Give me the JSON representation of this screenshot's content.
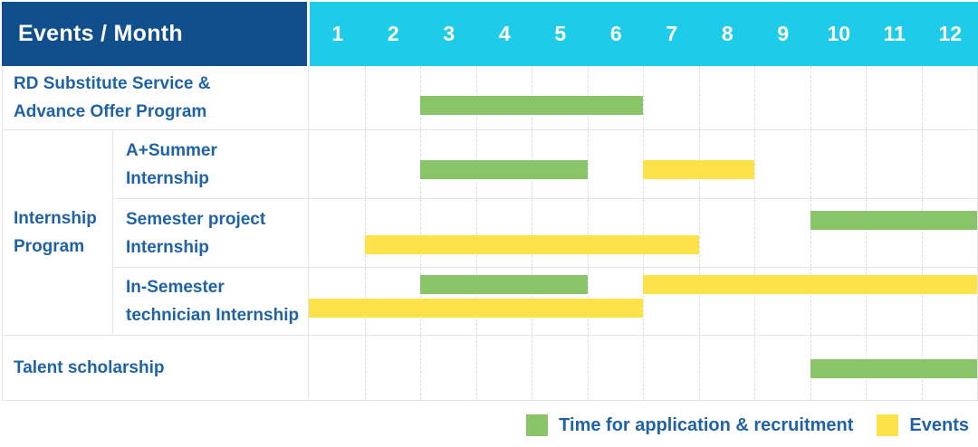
{
  "header": {
    "title": "Events / Month",
    "months": [
      "1",
      "2",
      "3",
      "4",
      "5",
      "6",
      "7",
      "8",
      "9",
      "10",
      "11",
      "12"
    ]
  },
  "colors": {
    "header_bg": "#114e8c",
    "months_bg": "#1ecbe9",
    "green": "#8ac469",
    "yellow": "#fde24a",
    "label_text": "#1f63a6"
  },
  "rows": [
    {
      "kind": "simple",
      "height": 70,
      "label_lines": [
        "RD Substitute Service &",
        "Advance Offer Program"
      ],
      "line_tops": [
        33
      ],
      "bars": [
        {
          "color": "green",
          "start": 3,
          "end": 6,
          "line": 0
        }
      ]
    },
    {
      "kind": "group",
      "label_lines": [
        "Internship",
        "Program"
      ],
      "children": [
        {
          "height": 75,
          "label_lines": [
            "A+Summer",
            "Internship"
          ],
          "line_tops": [
            33
          ],
          "bars": [
            {
              "color": "green",
              "start": 3,
              "end": 5,
              "line": 0
            },
            {
              "color": "yellow",
              "start": 7,
              "end": 8,
              "line": 0
            }
          ]
        },
        {
          "height": 75,
          "label_lines": [
            "Semester project",
            "Internship"
          ],
          "line_tops": [
            13,
            40
          ],
          "bars": [
            {
              "color": "green",
              "start": 10,
              "end": 12,
              "line": 0
            },
            {
              "color": "yellow",
              "start": 2,
              "end": 7,
              "line": 1
            }
          ]
        },
        {
          "height": 74,
          "label_lines": [
            "In-Semester",
            "technician Internship"
          ],
          "line_tops": [
            8,
            34
          ],
          "bars": [
            {
              "color": "green",
              "start": 3,
              "end": 5,
              "line": 0
            },
            {
              "color": "yellow",
              "start": 7,
              "end": 12,
              "line": 0
            },
            {
              "color": "yellow",
              "start": 1,
              "end": 6,
              "line": 1
            }
          ]
        }
      ]
    },
    {
      "kind": "simple",
      "height": 71,
      "label_lines": [
        "Talent scholarship"
      ],
      "line_tops": [
        26
      ],
      "bars": [
        {
          "color": "green",
          "start": 10,
          "end": 12,
          "line": 0
        }
      ]
    }
  ],
  "legend": [
    {
      "color": "green",
      "label": "Time for application & recruitment"
    },
    {
      "color": "yellow",
      "label": "Events"
    }
  ],
  "chart_data": {
    "type": "gantt",
    "title": "Events / Month",
    "x_axis": {
      "label": "Month",
      "ticks": [
        1,
        2,
        3,
        4,
        5,
        6,
        7,
        8,
        9,
        10,
        11,
        12
      ],
      "range": [
        1,
        12
      ]
    },
    "grid": true,
    "legend_position": "bottom-right",
    "series_meaning": {
      "green": "Time for application & recruitment",
      "yellow": "Events"
    },
    "rows": [
      {
        "group": null,
        "event": "RD Substitute Service & Advance Offer Program",
        "bars": [
          {
            "series": "Time for application & recruitment",
            "start_month": 3,
            "end_month": 6
          }
        ]
      },
      {
        "group": "Internship Program",
        "event": "A+Summer Internship",
        "bars": [
          {
            "series": "Time for application & recruitment",
            "start_month": 3,
            "end_month": 5
          },
          {
            "series": "Events",
            "start_month": 7,
            "end_month": 8
          }
        ]
      },
      {
        "group": "Internship Program",
        "event": "Semester project Internship",
        "bars": [
          {
            "series": "Time for application & recruitment",
            "start_month": 10,
            "end_month": 12
          },
          {
            "series": "Events",
            "start_month": 2,
            "end_month": 7
          }
        ]
      },
      {
        "group": "Internship Program",
        "event": "In-Semester technician Internship",
        "bars": [
          {
            "series": "Time for application & recruitment",
            "start_month": 3,
            "end_month": 5
          },
          {
            "series": "Events",
            "start_month": 7,
            "end_month": 12
          },
          {
            "series": "Events",
            "start_month": 1,
            "end_month": 6
          }
        ]
      },
      {
        "group": null,
        "event": "Talent scholarship",
        "bars": [
          {
            "series": "Time for application & recruitment",
            "start_month": 10,
            "end_month": 12
          }
        ]
      }
    ]
  }
}
